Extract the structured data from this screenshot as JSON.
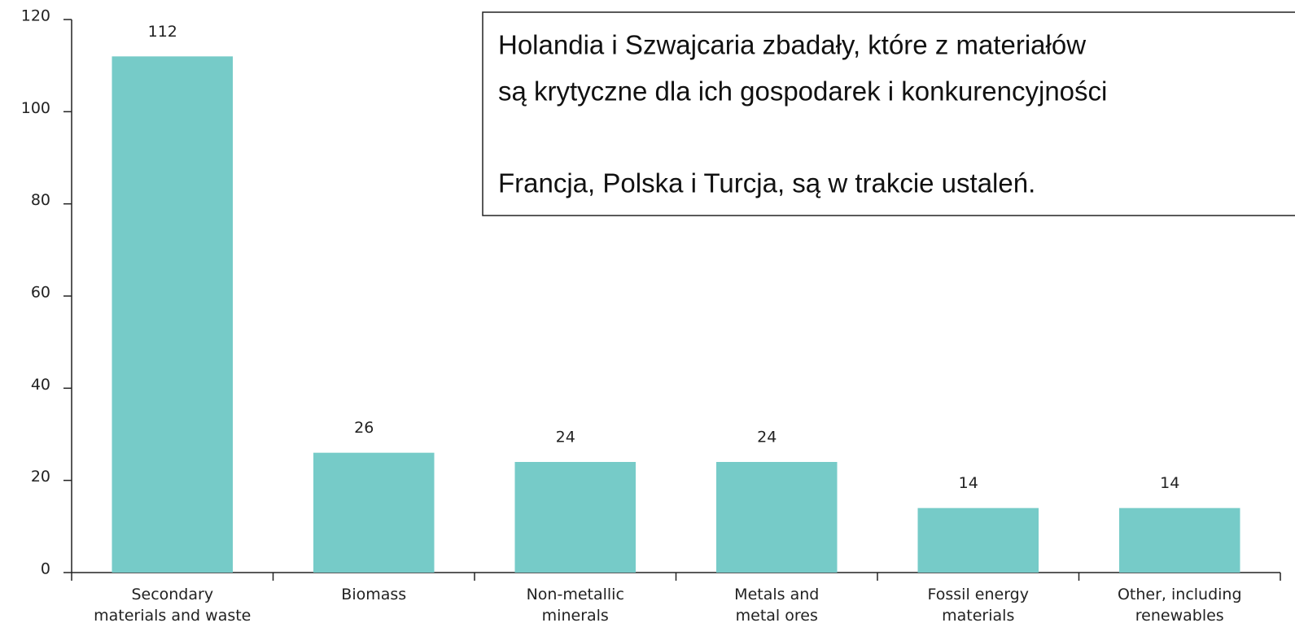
{
  "chart_data": {
    "type": "bar",
    "categories": [
      "Secondary\nmaterials and waste",
      "Biomass",
      "Non-metallic\nminerals",
      "Metals and\nmetal ores",
      "Fossil energy\nmaterials",
      "Other, including\nrenewables"
    ],
    "values": [
      112,
      26,
      24,
      24,
      14,
      14
    ],
    "color": "#76cbc8",
    "ylim": [
      0,
      120
    ],
    "yticks": [
      0,
      20,
      40,
      60,
      80,
      100,
      120
    ],
    "annotation": [
      "Holandia i Szwajcaria zbadały, które z materiałów",
      "są krytyczne dla ich gospodarek i konkurencyjności",
      "Francja, Polska i Turcja, są w trakcie ustaleń."
    ]
  }
}
